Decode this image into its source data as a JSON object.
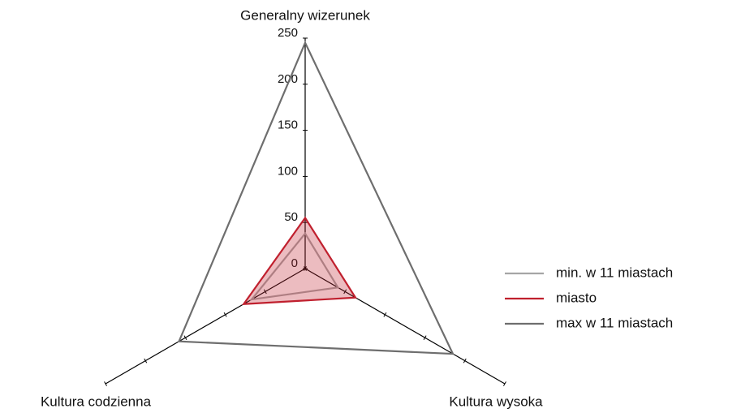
{
  "chart_data": {
    "type": "radar",
    "categories": [
      "Generalny wizerunek",
      "Kultura wysoka",
      "Kultura codzienna"
    ],
    "series": [
      {
        "name": "min. w 11 miastach",
        "color": "#a6a6a6",
        "values": [
          38,
          41,
          67
        ]
      },
      {
        "name": "miasto",
        "color": "#c0202e",
        "values": [
          55,
          63,
          77
        ]
      },
      {
        "name": "max w 11 miastach",
        "color": "#6e6e6e",
        "values": [
          245,
          185,
          158
        ]
      }
    ],
    "rlim": [
      0,
      250
    ],
    "rticks": [
      0,
      50,
      100,
      150,
      200,
      250
    ],
    "fill_series": "miasto",
    "legend": "right"
  }
}
